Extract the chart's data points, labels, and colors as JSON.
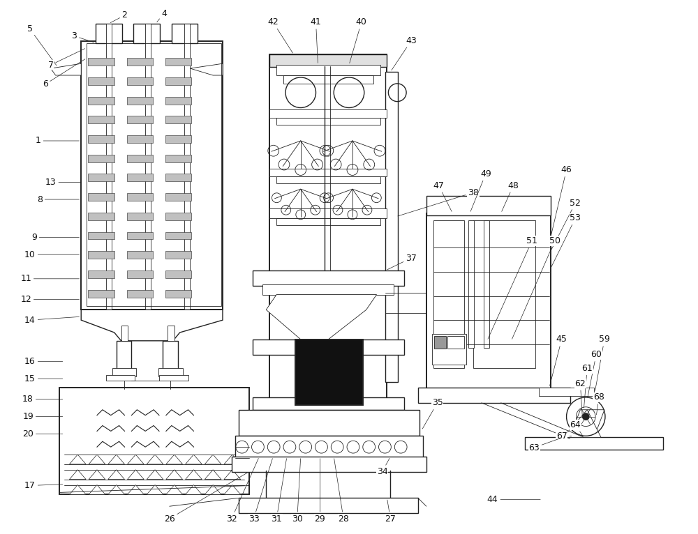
{
  "bg_color": "#ffffff",
  "line_color": "#222222",
  "figsize": [
    10.0,
    7.66
  ],
  "dpi": 100,
  "label_fs": 9,
  "label_color": "#111111"
}
